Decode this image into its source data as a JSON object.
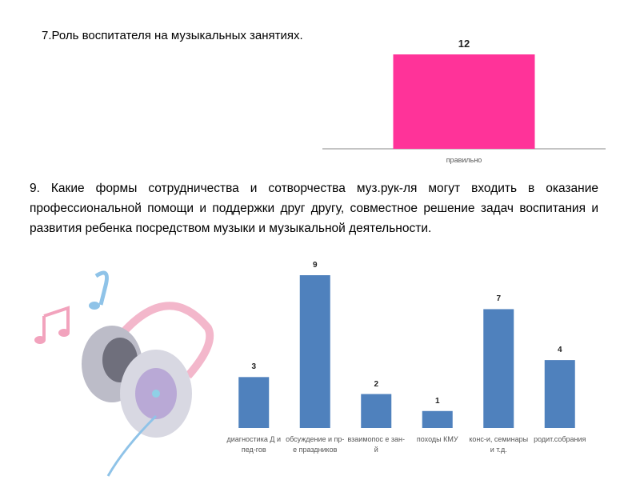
{
  "chart_data": [
    {
      "type": "bar",
      "title": "7.Роль воспитателя на музыкальных занятиях.",
      "categories": [
        "правильно"
      ],
      "values": [
        12
      ],
      "color": "#ff3399"
    },
    {
      "type": "bar",
      "title": "9. Какие формы сотрудничества и сотворчества муз.рук-ля могут входить в оказание профессиональной помощи и поддержки друг другу, совместное решение задач воспитания и развития ребенка посредством музыки и музыкальной деятельности.",
      "categories": [
        "диагностика Д и пед-гов",
        "обсуждение и пр-е праздников",
        "взаимопос е зан-й",
        "походы КМУ",
        "конс-и, семинары и т.д.",
        "родит.собрания"
      ],
      "values": [
        3,
        9,
        2,
        1,
        7,
        4
      ],
      "color": "#4f81bd"
    }
  ]
}
